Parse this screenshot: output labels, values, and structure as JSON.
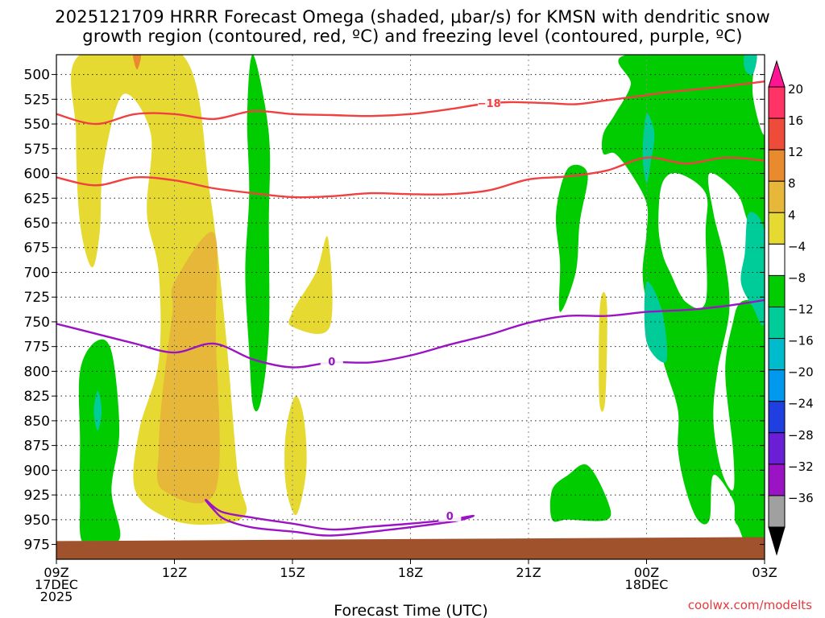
{
  "chart_data": {
    "type": "heatmap",
    "title_line1": "2025121709 HRRR Forecast Omega (shaded, μbar/s) for KMSN with dendritic snow",
    "title_line2": "growth region (contoured, red, ºC) and freezing level (contoured, purple, ºC)",
    "xlabel": "Forecast Time (UTC)",
    "credit": "coolwx.com/modelts",
    "x_range": [
      0,
      18
    ],
    "y_range": [
      480,
      990
    ],
    "y_ticks": [
      500,
      525,
      550,
      575,
      600,
      625,
      650,
      675,
      700,
      725,
      750,
      775,
      800,
      825,
      850,
      875,
      900,
      925,
      950,
      975
    ],
    "x_ticks": [
      {
        "hour": 0,
        "lines": [
          "09Z",
          "17DEC",
          "2025"
        ]
      },
      {
        "hour": 3,
        "lines": [
          "12Z"
        ]
      },
      {
        "hour": 6,
        "lines": [
          "15Z"
        ]
      },
      {
        "hour": 9,
        "lines": [
          "18Z"
        ]
      },
      {
        "hour": 12,
        "lines": [
          "21Z"
        ]
      },
      {
        "hour": 15,
        "lines": [
          "00Z",
          "18DEC"
        ]
      },
      {
        "hour": 18,
        "lines": [
          "03Z"
        ]
      }
    ],
    "colorbar": {
      "labels": [
        "20",
        "16",
        "12",
        "8",
        "4",
        "−4",
        "−8",
        "−12",
        "−16",
        "−20",
        "−24",
        "−28",
        "−32",
        "−36"
      ],
      "colors": [
        "#ff3366",
        "#ee4b3b",
        "#e98a2e",
        "#e7b73a",
        "#e6da32",
        "#ffffff",
        "#00cc00",
        "#00cc99",
        "#00bbcc",
        "#0099ee",
        "#1f3fe0",
        "#6a1fd6",
        "#9a14c4",
        "#a0a0a0"
      ],
      "top_color": "#ff1493",
      "bottom_color": "#000000"
    },
    "shaded_regions": [
      {
        "name": "omega-yellow-west",
        "color": "#e6da32",
        "pts": [
          [
            0.6,
            480
          ],
          [
            3.2,
            480
          ],
          [
            3.9,
            620
          ],
          [
            4.3,
            760
          ],
          [
            4.6,
            900
          ],
          [
            4.8,
            945
          ],
          [
            3.8,
            955
          ],
          [
            2.8,
            948
          ],
          [
            2.0,
            920
          ],
          [
            2.1,
            860
          ],
          [
            2.6,
            790
          ],
          [
            2.6,
            700
          ],
          [
            2.3,
            640
          ],
          [
            2.4,
            560
          ],
          [
            1.7,
            520
          ],
          [
            1.2,
            590
          ],
          [
            1.1,
            660
          ],
          [
            0.9,
            695
          ],
          [
            0.6,
            650
          ],
          [
            0.5,
            560
          ]
        ]
      },
      {
        "name": "omega-yellow-small-top",
        "color": "#e6da32",
        "pts": [
          [
            1.9,
            480
          ],
          [
            2.2,
            480
          ],
          [
            2.15,
            500
          ],
          [
            2.0,
            505
          ]
        ]
      },
      {
        "name": "omega-orange-core",
        "color": "#e7b73a",
        "pts": [
          [
            4.0,
            660
          ],
          [
            4.05,
            760
          ],
          [
            4.05,
            920
          ],
          [
            2.7,
            920
          ],
          [
            2.6,
            880
          ],
          [
            2.7,
            820
          ],
          [
            2.95,
            740
          ],
          [
            3.0,
            710
          ]
        ]
      },
      {
        "name": "omega-orange-small-top",
        "color": "#e98a2e",
        "pts": [
          [
            1.95,
            480
          ],
          [
            2.15,
            480
          ],
          [
            2.05,
            495
          ]
        ]
      },
      {
        "name": "omega-yellow-15z",
        "color": "#e6da32",
        "pts": [
          [
            6.9,
            665
          ],
          [
            6.95,
            755
          ],
          [
            6.0,
            755
          ],
          [
            6.0,
            740
          ],
          [
            6.6,
            700
          ]
        ]
      },
      {
        "name": "omega-yellow-15z-low",
        "color": "#e6da32",
        "pts": [
          [
            6.1,
            825
          ],
          [
            6.3,
            850
          ],
          [
            6.35,
            900
          ],
          [
            6.1,
            945
          ],
          [
            5.85,
            920
          ],
          [
            5.8,
            880
          ],
          [
            5.9,
            845
          ]
        ]
      },
      {
        "name": "omega-yellow-22z",
        "color": "#e6da32",
        "pts": [
          [
            13.9,
            720
          ],
          [
            14.0,
            740
          ],
          [
            13.95,
            830
          ],
          [
            13.8,
            830
          ],
          [
            13.8,
            745
          ]
        ]
      },
      {
        "name": "omega-yellow-edge",
        "color": "#e6da32",
        "pts": [
          [
            17.95,
            480
          ],
          [
            18,
            480
          ],
          [
            18,
            535
          ],
          [
            17.95,
            520
          ]
        ]
      },
      {
        "name": "omega-green-west",
        "color": "#00cc00",
        "pts": [
          [
            1.0,
            770
          ],
          [
            1.4,
            780
          ],
          [
            1.6,
            860
          ],
          [
            1.4,
            920
          ],
          [
            1.6,
            970
          ],
          [
            0.7,
            975
          ],
          [
            0.6,
            930
          ],
          [
            0.6,
            870
          ],
          [
            0.6,
            800
          ]
        ]
      },
      {
        "name": "omega-teal-west",
        "color": "#00cc99",
        "pts": [
          [
            1.05,
            820
          ],
          [
            1.15,
            840
          ],
          [
            1.05,
            860
          ],
          [
            0.95,
            840
          ]
        ]
      },
      {
        "name": "omega-green-14z",
        "color": "#00cc00",
        "pts": [
          [
            5.0,
            480
          ],
          [
            5.4,
            560
          ],
          [
            5.4,
            650
          ],
          [
            5.4,
            760
          ],
          [
            5.2,
            830
          ],
          [
            5.0,
            835
          ],
          [
            4.9,
            780
          ],
          [
            4.8,
            700
          ],
          [
            4.9,
            620
          ],
          [
            4.85,
            540
          ]
        ]
      },
      {
        "name": "omega-green-22z",
        "color": "#00cc00",
        "pts": [
          [
            13.0,
            595
          ],
          [
            13.5,
            600
          ],
          [
            13.3,
            650
          ],
          [
            13.2,
            700
          ],
          [
            12.8,
            740
          ],
          [
            12.8,
            690
          ],
          [
            12.7,
            640
          ]
        ]
      },
      {
        "name": "omega-green-21z-low",
        "color": "#00cc00",
        "pts": [
          [
            13.5,
            895
          ],
          [
            14.0,
            930
          ],
          [
            14.0,
            950
          ],
          [
            13.0,
            950
          ],
          [
            12.6,
            950
          ],
          [
            12.6,
            920
          ],
          [
            13.0,
            905
          ]
        ]
      },
      {
        "name": "omega-green-east",
        "color": "#00cc00",
        "pts": [
          [
            14.5,
            480
          ],
          [
            18,
            480
          ],
          [
            18,
            960
          ],
          [
            17.3,
            955
          ],
          [
            17.2,
            930
          ],
          [
            16.7,
            905
          ],
          [
            16.6,
            950
          ],
          [
            16.3,
            950
          ],
          [
            16.0,
            920
          ],
          [
            15.8,
            880
          ],
          [
            15.8,
            840
          ],
          [
            15.5,
            800
          ],
          [
            15.2,
            760
          ],
          [
            15.0,
            730
          ],
          [
            14.9,
            700
          ],
          [
            15.0,
            660
          ],
          [
            15.0,
            630
          ],
          [
            14.6,
            600
          ],
          [
            14.2,
            580
          ],
          [
            13.9,
            580
          ],
          [
            13.9,
            560
          ],
          [
            14.2,
            540
          ],
          [
            14.6,
            510
          ]
        ]
      },
      {
        "name": "omega-white-east-1",
        "color": "#ffffff",
        "pts": [
          [
            15.8,
            600
          ],
          [
            16.5,
            620
          ],
          [
            16.5,
            660
          ],
          [
            16.5,
            730
          ],
          [
            16.0,
            730
          ],
          [
            15.6,
            700
          ],
          [
            15.4,
            680
          ],
          [
            15.3,
            650
          ],
          [
            15.4,
            610
          ]
        ]
      },
      {
        "name": "omega-white-east-2",
        "color": "#ffffff",
        "pts": [
          [
            16.6,
            600
          ],
          [
            17.3,
            620
          ],
          [
            17.6,
            650
          ],
          [
            18,
            660
          ],
          [
            18,
            720
          ],
          [
            17.4,
            730
          ],
          [
            17.2,
            750
          ],
          [
            17.0,
            800
          ],
          [
            17.2,
            880
          ],
          [
            17.2,
            920
          ],
          [
            16.9,
            900
          ],
          [
            16.7,
            850
          ],
          [
            16.8,
            800
          ],
          [
            17.1,
            740
          ],
          [
            17.0,
            690
          ],
          [
            16.7,
            640
          ]
        ]
      },
      {
        "name": "omega-white-east-3",
        "color": "#ffffff",
        "pts": [
          [
            17.8,
            480
          ],
          [
            18,
            480
          ],
          [
            18,
            560
          ],
          [
            17.7,
            520
          ]
        ]
      },
      {
        "name": "omega-teal-east-1",
        "color": "#00cc99",
        "pts": [
          [
            15.0,
            540
          ],
          [
            15.2,
            560
          ],
          [
            15.1,
            590
          ],
          [
            15.0,
            610
          ],
          [
            14.9,
            580
          ]
        ]
      },
      {
        "name": "omega-teal-east-2",
        "color": "#00cc99",
        "pts": [
          [
            17.5,
            480
          ],
          [
            17.8,
            480
          ],
          [
            17.7,
            500
          ],
          [
            17.5,
            495
          ]
        ]
      },
      {
        "name": "omega-teal-east-3",
        "color": "#00cc99",
        "pts": [
          [
            17.6,
            640
          ],
          [
            18,
            660
          ],
          [
            18,
            750
          ],
          [
            17.7,
            735
          ],
          [
            17.4,
            710
          ],
          [
            17.5,
            680
          ]
        ]
      },
      {
        "name": "omega-teal-east-4",
        "color": "#00cc99",
        "pts": [
          [
            15.0,
            710
          ],
          [
            15.4,
            740
          ],
          [
            15.5,
            790
          ],
          [
            15.0,
            770
          ]
        ]
      }
    ],
    "contours": [
      {
        "name": "dgz-contour-top",
        "color": "#f04040",
        "label": "−18",
        "label_at": [
          11.0,
          529
        ],
        "pts": [
          [
            0,
            540
          ],
          [
            1,
            550
          ],
          [
            2,
            540
          ],
          [
            3,
            540
          ],
          [
            4,
            545
          ],
          [
            5,
            537
          ],
          [
            6,
            540
          ],
          [
            7,
            541
          ],
          [
            8,
            542
          ],
          [
            9,
            540
          ],
          [
            10,
            535
          ],
          [
            10.8,
            530
          ],
          [
            11.5,
            528
          ],
          [
            12.5,
            529
          ],
          [
            13.2,
            530
          ],
          [
            14,
            526
          ],
          [
            14.8,
            522
          ],
          [
            15.5,
            518
          ],
          [
            16,
            516
          ],
          [
            17,
            512
          ],
          [
            18,
            507
          ]
        ]
      },
      {
        "name": "dgz-contour-bottom",
        "color": "#f04040",
        "label": "",
        "pts": [
          [
            0,
            604
          ],
          [
            1,
            612
          ],
          [
            2,
            604
          ],
          [
            3,
            607
          ],
          [
            4,
            615
          ],
          [
            5,
            620
          ],
          [
            6,
            624
          ],
          [
            7,
            623
          ],
          [
            8,
            620
          ],
          [
            9,
            621
          ],
          [
            10,
            621
          ],
          [
            11,
            617
          ],
          [
            12,
            606
          ],
          [
            13,
            603
          ],
          [
            14,
            597
          ],
          [
            15,
            584
          ],
          [
            16,
            590
          ],
          [
            17,
            584
          ],
          [
            18,
            587
          ]
        ]
      },
      {
        "name": "freezing-level-contour",
        "color": "#9a14c4",
        "label": "0",
        "label_at": [
          7.0,
          790
        ],
        "pts": [
          [
            0,
            752
          ],
          [
            1,
            762
          ],
          [
            2,
            772
          ],
          [
            3,
            781
          ],
          [
            4,
            772
          ],
          [
            5,
            788
          ],
          [
            6,
            796
          ],
          [
            7,
            791
          ],
          [
            8,
            791
          ],
          [
            9,
            784
          ],
          [
            10,
            773
          ],
          [
            11,
            763
          ],
          [
            12,
            751
          ],
          [
            13,
            744
          ],
          [
            14,
            744
          ],
          [
            15,
            740
          ],
          [
            16,
            738
          ],
          [
            17,
            734
          ],
          [
            18,
            728
          ]
        ]
      },
      {
        "name": "freezing-level-contour-low",
        "color": "#9a14c4",
        "label": "0",
        "label_at": [
          10.0,
          946
        ],
        "pts": [
          [
            3.8,
            930
          ],
          [
            4.2,
            942
          ],
          [
            5,
            948
          ],
          [
            6,
            954
          ],
          [
            7,
            960
          ],
          [
            8,
            957
          ],
          [
            9,
            954
          ],
          [
            10,
            950
          ],
          [
            10.6,
            946
          ],
          [
            10.2,
            951
          ],
          [
            9.5,
            955
          ],
          [
            8.5,
            960
          ],
          [
            7,
            966
          ],
          [
            6,
            962
          ],
          [
            5,
            958
          ],
          [
            4.3,
            950
          ],
          [
            4.0,
            940
          ]
        ]
      }
    ],
    "terrain_band": [
      970,
      990
    ],
    "grid": true
  }
}
